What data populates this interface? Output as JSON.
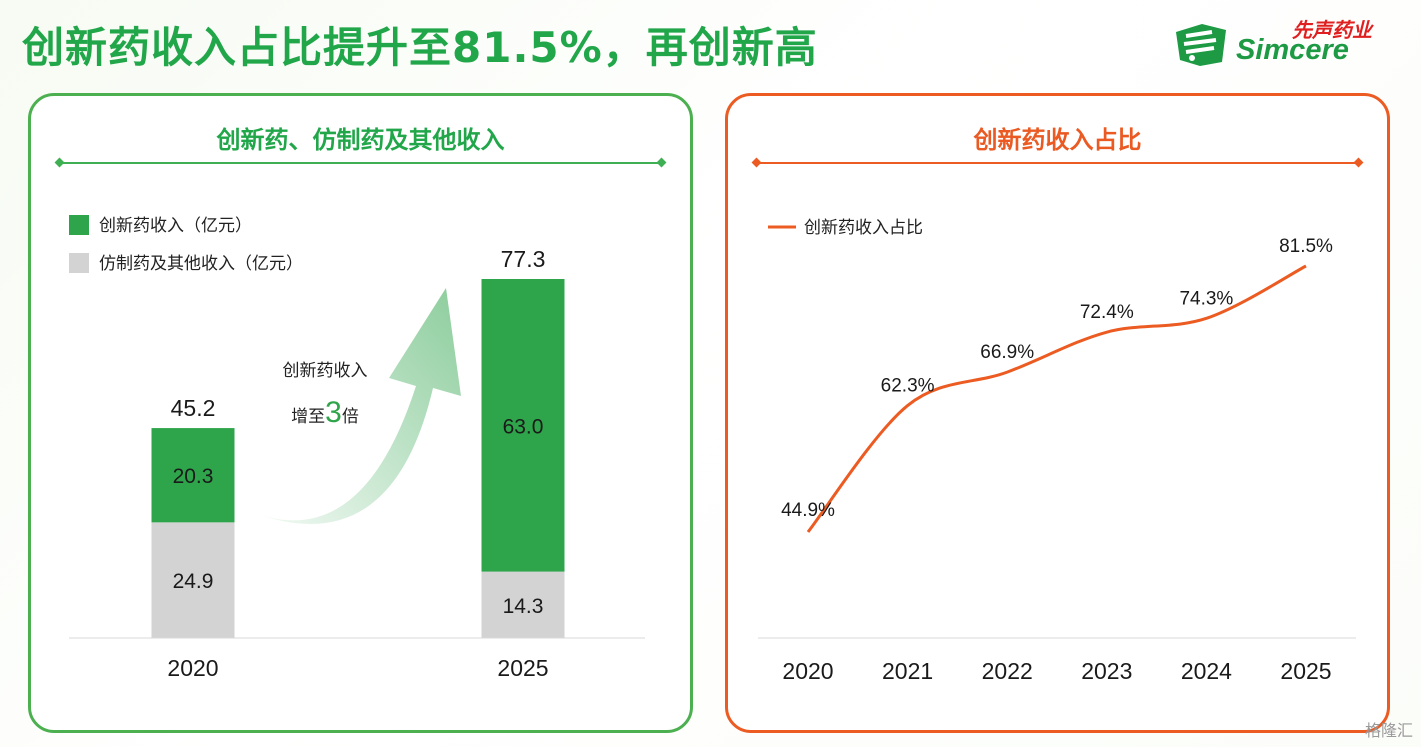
{
  "title": "创新药收入占比提升至81.5%，再创新高",
  "logo": {
    "cn": "先声药业",
    "en": "Simcere"
  },
  "left_panel": {
    "title": "创新药、仿制药及其他收入",
    "legend": [
      "创新药收入（亿元）",
      "仿制药及其他收入（亿元）"
    ],
    "callout": {
      "line1": "创新药收入",
      "line2_pre": "增至",
      "line2_num": "3",
      "line2_post": "倍"
    }
  },
  "right_panel": {
    "title": "创新药收入占比",
    "legend": [
      "创新药收入占比"
    ]
  },
  "colors": {
    "green": "#2ea44b",
    "gray": "#d3d3d3",
    "orange": "#ec5b22",
    "title_green": "#22a64a"
  },
  "chart_data": [
    {
      "type": "bar",
      "stacked": true,
      "categories": [
        "2020",
        "2025"
      ],
      "series": [
        {
          "name": "仿制药及其他收入（亿元）",
          "values": [
            24.9,
            14.3
          ],
          "color": "#d3d3d3"
        },
        {
          "name": "创新药收入（亿元）",
          "values": [
            20.3,
            63.0
          ],
          "color": "#2ea44b"
        }
      ],
      "value_labels": [
        [
          "24.9",
          "14.3"
        ],
        [
          "20.3",
          "63.0"
        ]
      ],
      "totals": [
        "45.2",
        "77.3"
      ],
      "ylim": [
        0,
        77.3
      ]
    },
    {
      "type": "line",
      "categories": [
        "2020",
        "2021",
        "2022",
        "2023",
        "2024",
        "2025"
      ],
      "series": [
        {
          "name": "创新药收入占比",
          "values": [
            44.9,
            62.3,
            66.9,
            72.4,
            74.3,
            81.5
          ],
          "color": "#ec5b22"
        }
      ],
      "value_labels": [
        "44.9%",
        "62.3%",
        "66.9%",
        "72.4%",
        "74.3%",
        "81.5%"
      ],
      "ylim": [
        44.9,
        81.5
      ]
    }
  ],
  "watermark": "格隆汇"
}
